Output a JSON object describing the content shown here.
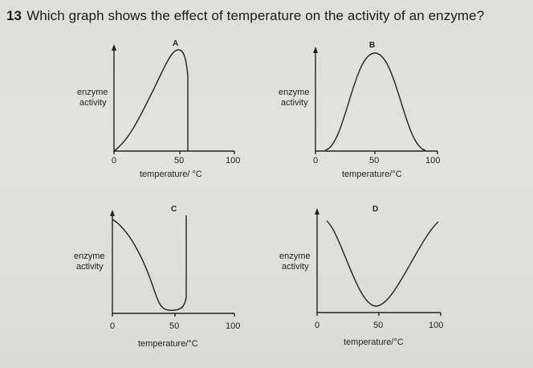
{
  "question": {
    "number": "13",
    "text": "Which graph shows the effect of temperature on the activity of an enzyme?"
  },
  "graphs": [
    {
      "letter": "A",
      "ylabel_line1": "enzyme",
      "ylabel_line2": "activity",
      "ticks": [
        "0",
        "50",
        "100"
      ],
      "xlabel": "temperature/ °C"
    },
    {
      "letter": "B",
      "ylabel_line1": "enzyme",
      "ylabel_line2": "activity",
      "ticks": [
        "0",
        "50",
        "100"
      ],
      "xlabel": "temperature/°C"
    },
    {
      "letter": "C",
      "ylabel_line1": "enzyme",
      "ylabel_line2": "activity",
      "ticks": [
        "0",
        "50",
        "100"
      ],
      "xlabel": "temperature/°C"
    },
    {
      "letter": "D",
      "ylabel_line1": "enzyme",
      "ylabel_line2": "activity",
      "ticks": [
        "0",
        "50",
        "100"
      ],
      "xlabel": "temperature/°C"
    }
  ]
}
